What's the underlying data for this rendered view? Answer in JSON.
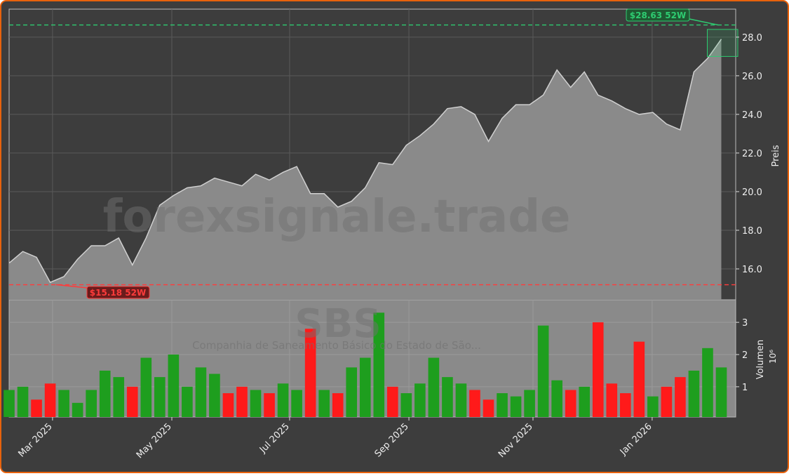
{
  "chart_data": [
    {
      "type": "area",
      "watermark": "forexsignale.trade",
      "symbol": "SBS",
      "company": "Companhia de Saneamento Básico do Estado de São...",
      "y_label": "Preis",
      "x": [
        0,
        1,
        2,
        3,
        4,
        5,
        6,
        7,
        8,
        9,
        10,
        11,
        12,
        13,
        14,
        15,
        16,
        17,
        18,
        19,
        20,
        21,
        22,
        23,
        24,
        25,
        26,
        27,
        28,
        29,
        30,
        31,
        32,
        33,
        34,
        35,
        36,
        37,
        38,
        39,
        40,
        41,
        42,
        43,
        44,
        45,
        46,
        47,
        48,
        49,
        50,
        51,
        52
      ],
      "series": [
        {
          "name": "SBS",
          "color": "#d0d0d0",
          "values": [
            16.3,
            16.9,
            16.6,
            15.3,
            15.6,
            16.5,
            17.2,
            17.2,
            17.6,
            16.2,
            17.6,
            19.3,
            19.8,
            20.2,
            20.3,
            20.7,
            20.5,
            20.3,
            20.9,
            20.6,
            21.0,
            21.3,
            19.9,
            19.9,
            19.2,
            19.5,
            20.2,
            21.5,
            21.4,
            22.4,
            22.9,
            23.5,
            24.3,
            24.4,
            24.0,
            22.6,
            23.8,
            24.5,
            24.5,
            25.0,
            26.3,
            25.4,
            26.2,
            25.0,
            24.7,
            24.3,
            24.0,
            24.1,
            23.5,
            23.2,
            26.2,
            26.9,
            27.9
          ]
        }
      ],
      "high_52w": 28.63,
      "high_label": "$28.63 52W",
      "high_color": "#2ecc71",
      "low_52w": 15.18,
      "low_label": "$15.18 52W",
      "low_color": "#ff3b3b",
      "xlim": [
        0,
        53.05
      ],
      "ylim": [
        14.4,
        29.45
      ],
      "yticks": [
        {
          "value": 16,
          "label": "16.0"
        },
        {
          "value": 18,
          "label": "18.0"
        },
        {
          "value": 20,
          "label": "20.0"
        },
        {
          "value": 22,
          "label": "22.0"
        },
        {
          "value": 24,
          "label": "24.0"
        },
        {
          "value": 26,
          "label": "26.0"
        },
        {
          "value": 28,
          "label": "28.0"
        }
      ],
      "grid": true
    },
    {
      "type": "bar",
      "y_label": "Volumen",
      "y_multiplier": "10⁶",
      "up_color": "#1e9e1e",
      "down_color": "#ff1a1a",
      "x": [
        0,
        1,
        2,
        3,
        4,
        5,
        6,
        7,
        8,
        9,
        10,
        11,
        12,
        13,
        14,
        15,
        16,
        17,
        18,
        19,
        20,
        21,
        22,
        23,
        24,
        25,
        26,
        27,
        28,
        29,
        30,
        31,
        32,
        33,
        34,
        35,
        36,
        37,
        38,
        39,
        40,
        41,
        42,
        43,
        44,
        45,
        46,
        47,
        48,
        49,
        50,
        51,
        52
      ],
      "values": [
        0.9,
        1.0,
        0.6,
        1.1,
        0.9,
        0.5,
        0.9,
        1.5,
        1.3,
        1.0,
        1.9,
        1.3,
        2.0,
        1.0,
        1.6,
        1.4,
        0.8,
        1.0,
        0.9,
        0.8,
        1.1,
        0.9,
        2.8,
        0.9,
        0.8,
        1.6,
        1.9,
        3.3,
        1.0,
        0.8,
        1.1,
        1.9,
        1.3,
        1.1,
        0.9,
        0.6,
        0.8,
        0.7,
        0.9,
        2.9,
        1.2,
        0.9,
        1.0,
        3.0,
        1.1,
        0.8,
        2.4,
        0.7,
        1.0,
        1.3,
        1.5,
        2.2,
        1.6
      ],
      "xlim": [
        0,
        53.05
      ],
      "ylim": [
        0.06,
        3.7
      ],
      "yticks": [
        1,
        2,
        3
      ],
      "xticks": [
        {
          "value": 3.17,
          "label": "Mar 2025"
        },
        {
          "value": 11.88,
          "label": "May 2025"
        },
        {
          "value": 20.48,
          "label": "Jul 2025"
        },
        {
          "value": 29.19,
          "label": "Sep 2025"
        },
        {
          "value": 38.25,
          "label": "Nov 2025"
        },
        {
          "value": 46.95,
          "label": "Jan 2026"
        }
      ],
      "grid": true
    }
  ]
}
